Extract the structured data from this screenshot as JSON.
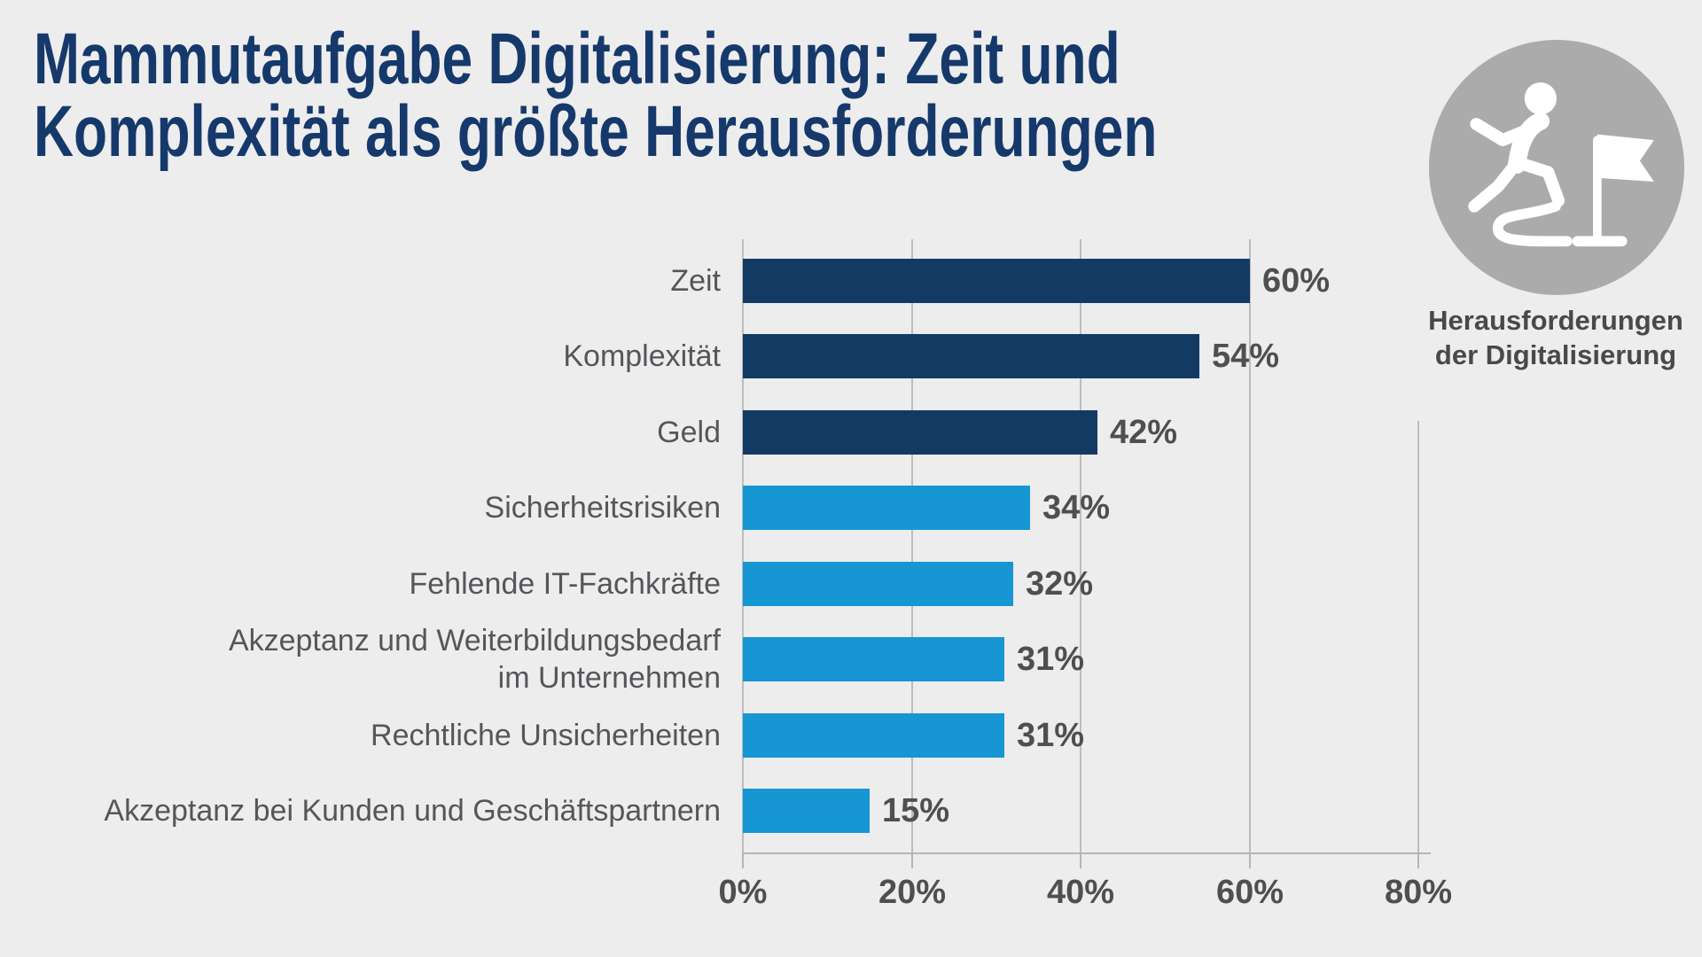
{
  "page": {
    "background": "#ededee"
  },
  "title": {
    "text": "Mammutaufgabe Digitalisierung: Zeit und Komplexität als größte Herausforderungen",
    "lines": [
      "Mammutaufgabe Digitalisierung: Zeit und",
      "Komplexität als größte Herausforderungen"
    ],
    "color": "#16396b"
  },
  "badge": {
    "icon": "runner-to-flag-icon",
    "circle_color": "#ababab",
    "caption_lines": [
      "Herausforderungen",
      "der Digitalisierung"
    ],
    "caption_color": "#48494b"
  },
  "chart_data": {
    "type": "bar",
    "orientation": "horizontal",
    "unit": "%",
    "categories": [
      "Zeit",
      "Komplexität",
      "Geld",
      "Sicherheitsrisiken",
      "Fehlende IT-Fachkräfte",
      "Akzeptanz und Weiterbildungsbedarf im Unternehmen",
      "Rechtliche Unsicherheiten",
      "Akzeptanz bei Kunden und Geschäftspartnern"
    ],
    "category_display_lines": [
      [
        "Zeit"
      ],
      [
        "Komplexität"
      ],
      [
        "Geld"
      ],
      [
        "Sicherheitsrisiken"
      ],
      [
        "Fehlende IT-Fachkräfte"
      ],
      [
        "Akzeptanz und Weiterbildungsbedarf",
        "im Unternehmen"
      ],
      [
        "Rechtliche Unsicherheiten"
      ],
      [
        "Akzeptanz bei Kunden und Geschäftspartnern"
      ]
    ],
    "values": [
      60,
      54,
      42,
      34,
      32,
      31,
      31,
      15
    ],
    "value_labels": [
      "60%",
      "54%",
      "42%",
      "34%",
      "32%",
      "31%",
      "31%",
      "15%"
    ],
    "bar_color_keys": [
      "dark",
      "dark",
      "dark",
      "light",
      "light",
      "light",
      "light",
      "light"
    ],
    "colors": {
      "dark": "#133a63",
      "light": "#1697d4"
    },
    "x_ticks": [
      "0%",
      "20%",
      "40%",
      "60%",
      "80%"
    ],
    "xlim": [
      0,
      80
    ],
    "grid": true,
    "xlabel": "",
    "ylabel": ""
  }
}
